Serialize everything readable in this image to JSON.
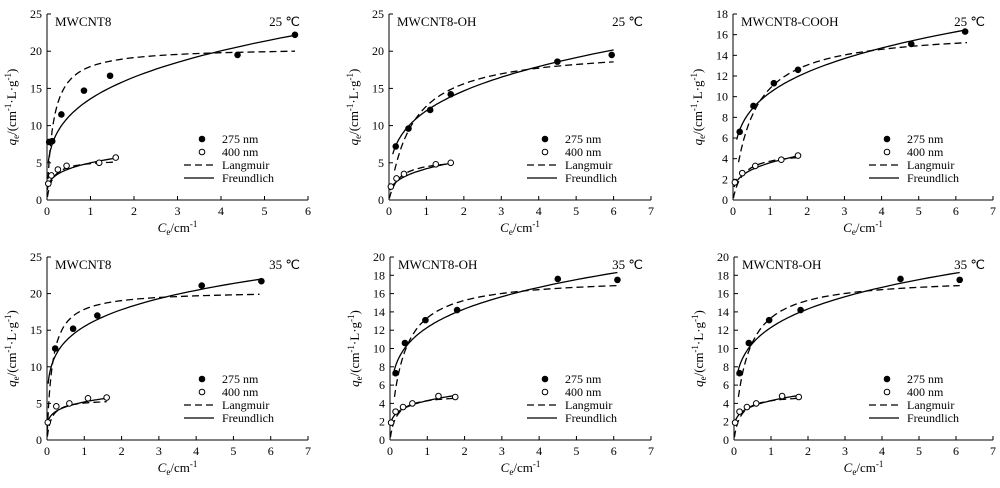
{
  "chart_data": [
    {
      "type": "scatter",
      "title": "MWCNT8",
      "temperature": "25 ℃",
      "xlabel_main": "C",
      "xlabel_sub": "e",
      "xlabel_unit": "/cm",
      "ylabel_main": "q",
      "ylabel_sub": "e",
      "ylabel_unit": "/(cm",
      "xlim": [
        0,
        6
      ],
      "ylim": [
        0,
        25
      ],
      "xticks": [
        "0",
        "1",
        "2",
        "3",
        "4",
        "5",
        "6"
      ],
      "yticks": [
        "0",
        "5",
        "10",
        "15",
        "20",
        "25"
      ],
      "legend": [
        "275 nm",
        "400 nm",
        "Langmuir",
        "Freundlich"
      ],
      "series": [
        {
          "name": "275 nm",
          "marker": "filled",
          "x": [
            0.05,
            0.12,
            0.33,
            0.85,
            1.45,
            4.38,
            5.7
          ],
          "y": [
            7.8,
            7.9,
            11.5,
            14.7,
            16.7,
            19.5,
            22.2
          ]
        },
        {
          "name": "400 nm",
          "marker": "open",
          "x": [
            0.03,
            0.1,
            0.25,
            0.45,
            1.2,
            1.58
          ],
          "y": [
            2.2,
            3.3,
            4.1,
            4.6,
            5.0,
            5.7
          ]
        }
      ],
      "fits": [
        {
          "model": "Langmuir",
          "target": "275 nm",
          "qmax": 20.5,
          "K": 7,
          "xrange": [
            0.01,
            5.7
          ]
        },
        {
          "model": "Freundlich",
          "target": "275 nm",
          "Kf": 13.6,
          "n": 0.28,
          "xrange": [
            0.03,
            5.7
          ]
        },
        {
          "model": "Langmuir",
          "target": "400 nm",
          "qmax": 5.5,
          "K": 8,
          "xrange": [
            0.01,
            1.6
          ]
        },
        {
          "model": "Freundlich",
          "target": "400 nm",
          "Kf": 5.0,
          "n": 0.26,
          "xrange": [
            0.01,
            1.6
          ]
        }
      ]
    },
    {
      "type": "scatter",
      "title": "MWCNT8-OH",
      "temperature": "25 ℃",
      "xlabel_main": "C",
      "xlabel_sub": "e",
      "xlabel_unit": "/cm",
      "ylabel_main": "q",
      "ylabel_sub": "e",
      "ylabel_unit": "/(cm",
      "xlim": [
        0,
        7
      ],
      "ylim": [
        0,
        25
      ],
      "xticks": [
        "0",
        "1",
        "2",
        "3",
        "4",
        "5",
        "6",
        "7"
      ],
      "yticks": [
        "0",
        "5",
        "10",
        "15",
        "20",
        "25"
      ],
      "legend": [
        "275 nm",
        "400 nm",
        "Langmuir",
        "Freundlich"
      ],
      "series": [
        {
          "name": "275 nm",
          "marker": "filled",
          "x": [
            0.18,
            0.52,
            1.1,
            1.65,
            4.5,
            5.95
          ],
          "y": [
            7.2,
            9.6,
            12.1,
            14.2,
            18.6,
            19.5
          ]
        },
        {
          "name": "400 nm",
          "marker": "open",
          "x": [
            0.05,
            0.2,
            0.4,
            1.25,
            1.65
          ],
          "y": [
            1.8,
            2.9,
            3.5,
            4.8,
            5.0
          ]
        }
      ],
      "fits": [
        {
          "model": "Langmuir",
          "target": "275 nm",
          "qmax": 20.5,
          "K": 1.6,
          "xrange": [
            0.15,
            6
          ]
        },
        {
          "model": "Freundlich",
          "target": "275 nm",
          "Kf": 12.0,
          "n": 0.29,
          "xrange": [
            0.1,
            6
          ]
        },
        {
          "model": "Langmuir",
          "target": "400 nm",
          "qmax": 5.6,
          "K": 4,
          "xrange": [
            0.01,
            1.7
          ]
        },
        {
          "model": "Freundlich",
          "target": "400 nm",
          "Kf": 4.2,
          "n": 0.33,
          "xrange": [
            0.03,
            1.7
          ]
        }
      ]
    },
    {
      "type": "scatter",
      "title": "MWCNT8-COOH",
      "temperature": "25 ℃",
      "xlabel_main": "C",
      "xlabel_sub": "e",
      "xlabel_unit": "/cm",
      "ylabel_main": "q",
      "ylabel_sub": "e",
      "ylabel_unit": "/(cm",
      "xlim": [
        0,
        7
      ],
      "ylim": [
        0,
        18
      ],
      "xticks": [
        "0",
        "1",
        "2",
        "3",
        "4",
        "5",
        "6",
        "7"
      ],
      "yticks": [
        "0",
        "2",
        "4",
        "6",
        "8",
        "10",
        "12",
        "14",
        "16",
        "18"
      ],
      "legend": [
        "275 nm",
        "400 nm",
        "Langmuir",
        "Freundlich"
      ],
      "series": [
        {
          "name": "275 nm",
          "marker": "filled",
          "x": [
            0.18,
            0.55,
            1.1,
            1.75,
            4.8,
            6.25
          ],
          "y": [
            6.6,
            9.1,
            11.3,
            12.6,
            15.1,
            16.3
          ]
        },
        {
          "name": "400 nm",
          "marker": "open",
          "x": [
            0.05,
            0.25,
            0.6,
            1.3,
            1.75
          ],
          "y": [
            1.7,
            2.6,
            3.3,
            3.9,
            4.3
          ]
        }
      ],
      "fits": [
        {
          "model": "Langmuir",
          "target": "275 nm",
          "qmax": 16.5,
          "K": 1.9,
          "xrange": [
            0.15,
            6.3
          ]
        },
        {
          "model": "Freundlich",
          "target": "275 nm",
          "Kf": 10.4,
          "n": 0.25,
          "xrange": [
            0.1,
            6.3
          ]
        },
        {
          "model": "Langmuir",
          "target": "400 nm",
          "qmax": 4.7,
          "K": 4,
          "xrange": [
            0.01,
            1.8
          ]
        },
        {
          "model": "Freundlich",
          "target": "400 nm",
          "Kf": 3.6,
          "n": 0.3,
          "xrange": [
            0.03,
            1.8
          ]
        }
      ]
    },
    {
      "type": "scatter",
      "title": "MWCNT8",
      "temperature": "35 ℃",
      "xlabel_main": "C",
      "xlabel_sub": "e",
      "xlabel_unit": "/cm",
      "ylabel_main": "q",
      "ylabel_sub": "e",
      "ylabel_unit": "/(cm",
      "xlim": [
        0,
        7
      ],
      "ylim": [
        0,
        25
      ],
      "xticks": [
        "0",
        "1",
        "2",
        "3",
        "4",
        "5",
        "6",
        "7"
      ],
      "yticks": [
        "0",
        "5",
        "10",
        "15",
        "20",
        "25"
      ],
      "legend": [
        "275 nm",
        "400 nm",
        "Langmuir",
        "Freundlich"
      ],
      "series": [
        {
          "name": "275 nm",
          "marker": "filled",
          "x": [
            0.22,
            0.7,
            1.35,
            4.15,
            5.75
          ],
          "y": [
            12.5,
            15.2,
            17.0,
            21.1,
            21.7
          ]
        },
        {
          "name": "400 nm",
          "marker": "open",
          "x": [
            0.02,
            0.25,
            0.6,
            1.1,
            1.6
          ],
          "y": [
            2.4,
            4.6,
            5.0,
            5.7,
            5.8
          ]
        }
      ],
      "fits": [
        {
          "model": "Langmuir",
          "target": "275 nm",
          "qmax": 20.4,
          "K": 7,
          "xrange": [
            0.01,
            5.7
          ]
        },
        {
          "model": "Freundlich",
          "target": "275 nm",
          "Kf": 15.5,
          "n": 0.2,
          "xrange": [
            0.03,
            5.7
          ]
        },
        {
          "model": "Langmuir",
          "target": "400 nm",
          "qmax": 5.6,
          "K": 9,
          "xrange": [
            0.01,
            1.6
          ]
        },
        {
          "model": "Freundlich",
          "target": "400 nm",
          "Kf": 5.2,
          "n": 0.2,
          "xrange": [
            0.01,
            1.6
          ]
        }
      ]
    },
    {
      "type": "scatter",
      "title": "MWCNT8-OH",
      "temperature": "35 ℃",
      "xlabel_main": "C",
      "xlabel_sub": "e",
      "xlabel_unit": "/cm",
      "ylabel_main": "q",
      "ylabel_sub": "e",
      "ylabel_unit": "/(cm",
      "xlim": [
        0,
        7
      ],
      "ylim": [
        0,
        20
      ],
      "xticks": [
        "0",
        "1",
        "2",
        "3",
        "4",
        "5",
        "6",
        "7"
      ],
      "yticks": [
        "0",
        "2",
        "4",
        "6",
        "8",
        "10",
        "12",
        "14",
        "16",
        "18",
        "20"
      ],
      "legend": [
        "275 nm",
        "400 nm",
        "Langmuir",
        "Freundlich"
      ],
      "series": [
        {
          "name": "275 nm",
          "marker": "filled",
          "x": [
            0.15,
            0.4,
            0.95,
            1.8,
            4.5,
            6.1
          ],
          "y": [
            7.3,
            10.6,
            13.1,
            14.2,
            17.6,
            17.5
          ]
        },
        {
          "name": "400 nm",
          "marker": "open",
          "x": [
            0.03,
            0.15,
            0.35,
            0.6,
            1.3,
            1.75
          ],
          "y": [
            1.9,
            3.1,
            3.6,
            4.0,
            4.8,
            4.7
          ]
        }
      ],
      "fits": [
        {
          "model": "Langmuir",
          "target": "275 nm",
          "qmax": 17.8,
          "K": 3,
          "xrange": [
            0.12,
            6.1
          ]
        },
        {
          "model": "Freundlich",
          "target": "275 nm",
          "Kf": 12.3,
          "n": 0.22,
          "xrange": [
            0.08,
            6.1
          ]
        },
        {
          "model": "Langmuir",
          "target": "400 nm",
          "qmax": 5.0,
          "K": 6,
          "xrange": [
            0.01,
            1.7
          ]
        },
        {
          "model": "Freundlich",
          "target": "400 nm",
          "Kf": 4.3,
          "n": 0.22,
          "xrange": [
            0.01,
            1.7
          ]
        }
      ]
    },
    {
      "type": "scatter",
      "title": "MWCNT8-OH",
      "temperature": "35 ℃",
      "xlabel_main": "C",
      "xlabel_sub": "e",
      "xlabel_unit": "/cm",
      "ylabel_main": "q",
      "ylabel_sub": "e",
      "ylabel_unit": "/(cm",
      "xlim": [
        0,
        7
      ],
      "ylim": [
        0,
        20
      ],
      "xticks": [
        "0",
        "1",
        "2",
        "3",
        "4",
        "5",
        "6",
        "7"
      ],
      "yticks": [
        "0",
        "2",
        "4",
        "6",
        "8",
        "10",
        "12",
        "14",
        "16",
        "18",
        "20"
      ],
      "legend": [
        "275 nm",
        "400 nm",
        "Langmuir",
        "Freundlich"
      ],
      "series": [
        {
          "name": "275 nm",
          "marker": "filled",
          "x": [
            0.15,
            0.4,
            0.95,
            1.8,
            4.5,
            6.1
          ],
          "y": [
            7.3,
            10.6,
            13.1,
            14.2,
            17.6,
            17.5
          ]
        },
        {
          "name": "400 nm",
          "marker": "open",
          "x": [
            0.03,
            0.15,
            0.35,
            0.6,
            1.3,
            1.75
          ],
          "y": [
            1.9,
            3.1,
            3.6,
            4.0,
            4.8,
            4.7
          ]
        }
      ],
      "fits": [
        {
          "model": "Langmuir",
          "target": "275 nm",
          "qmax": 17.8,
          "K": 3,
          "xrange": [
            0.12,
            6.1
          ]
        },
        {
          "model": "Freundlich",
          "target": "275 nm",
          "Kf": 12.3,
          "n": 0.22,
          "xrange": [
            0.08,
            6.1
          ]
        },
        {
          "model": "Langmuir",
          "target": "400 nm",
          "qmax": 5.0,
          "K": 6,
          "xrange": [
            0.01,
            1.7
          ]
        },
        {
          "model": "Freundlich",
          "target": "400 nm",
          "Kf": 4.3,
          "n": 0.22,
          "xrange": [
            0.01,
            1.7
          ]
        }
      ]
    }
  ]
}
